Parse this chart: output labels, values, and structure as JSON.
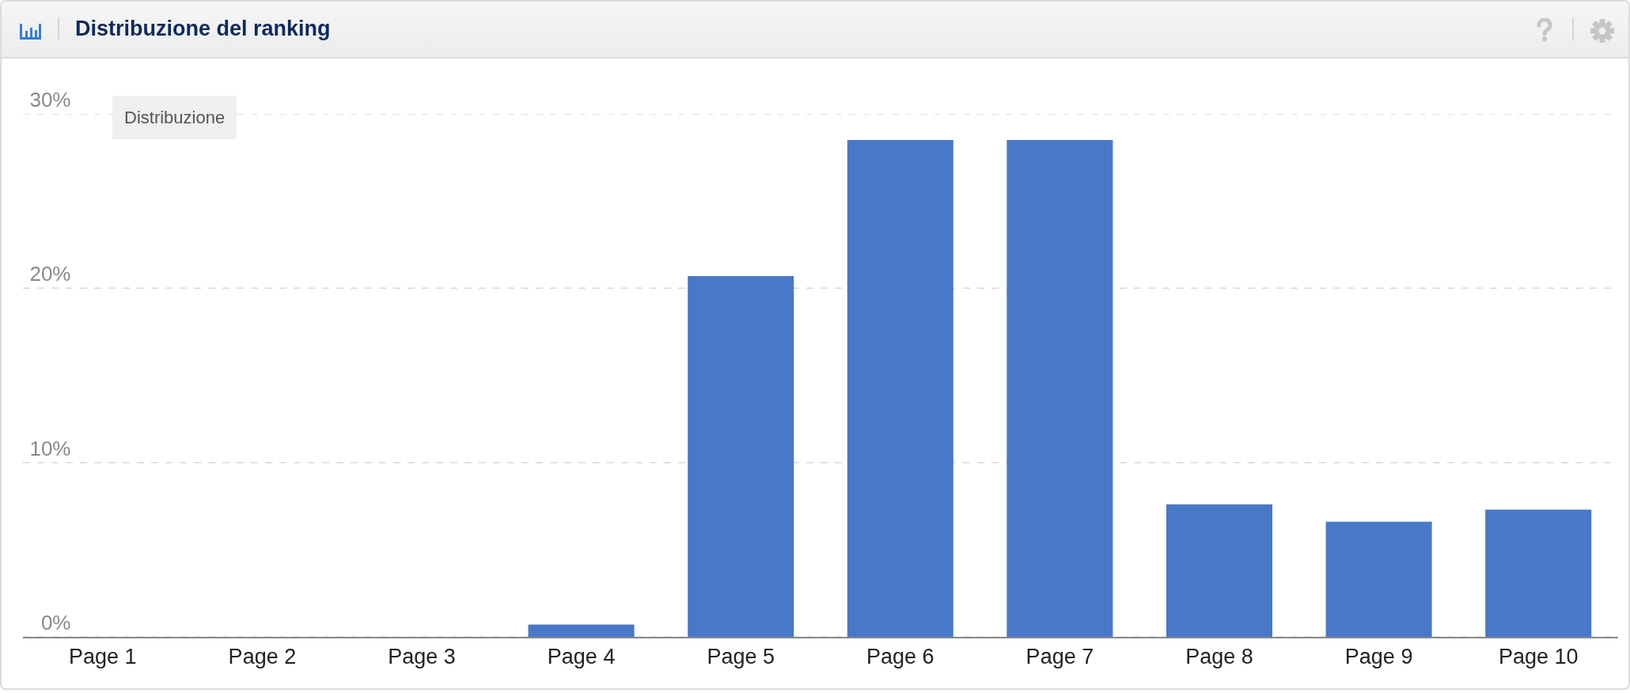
{
  "chart_data": {
    "type": "bar",
    "title": "Distribuzione del ranking",
    "annotations": [
      "Distribuzione"
    ],
    "categories": [
      "Page 1",
      "Page 2",
      "Page 3",
      "Page 4",
      "Page 5",
      "Page 6",
      "Page 7",
      "Page 8",
      "Page 9",
      "Page 10"
    ],
    "values": [
      0,
      0,
      0,
      0.7,
      20.7,
      28.5,
      28.5,
      7.6,
      6.6,
      7.3
    ],
    "color": "#4878c7",
    "ylim": [
      0,
      30
    ],
    "yticks": [
      {
        "value": 0,
        "label": "0%"
      },
      {
        "value": 10,
        "label": "10%"
      },
      {
        "value": 20,
        "label": "20%"
      },
      {
        "value": 30,
        "label": "30%"
      }
    ],
    "grid": "y"
  }
}
